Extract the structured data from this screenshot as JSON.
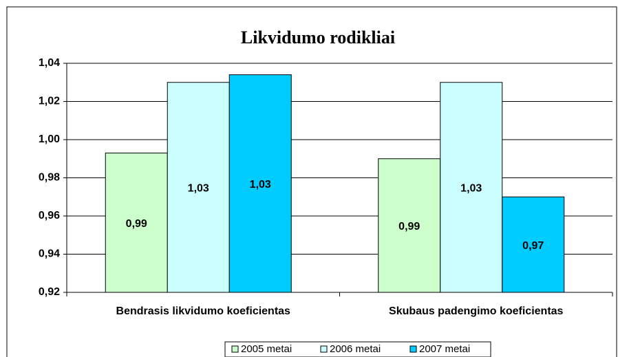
{
  "chart_data": {
    "type": "bar",
    "title": "Likvidumo rodikliai",
    "categories": [
      "Bendrasis likvidumo koeficientas",
      "Skubaus padengimo koeficientas"
    ],
    "series": [
      {
        "name": "2005 metai",
        "color": "#ccffcc",
        "values": [
          0.993,
          0.99
        ],
        "value_labels": [
          "0,99",
          "0,99"
        ]
      },
      {
        "name": "2006 metai",
        "color": "#ccffff",
        "values": [
          1.03,
          1.03
        ],
        "value_labels": [
          "1,03",
          "1,03"
        ]
      },
      {
        "name": "2007 metai",
        "color": "#00ccff",
        "values": [
          1.034,
          0.97
        ],
        "value_labels": [
          "1,03",
          "0,97"
        ]
      }
    ],
    "ylim": [
      0.92,
      1.04
    ],
    "yticks": [
      {
        "value": 0.92,
        "label": "0,92"
      },
      {
        "value": 0.94,
        "label": "0,94"
      },
      {
        "value": 0.96,
        "label": "0,96"
      },
      {
        "value": 0.98,
        "label": "0,98"
      },
      {
        "value": 1.0,
        "label": "1,00"
      },
      {
        "value": 1.02,
        "label": "1,02"
      },
      {
        "value": 1.04,
        "label": "1,04"
      }
    ],
    "grid": true,
    "legend": "bottom"
  }
}
